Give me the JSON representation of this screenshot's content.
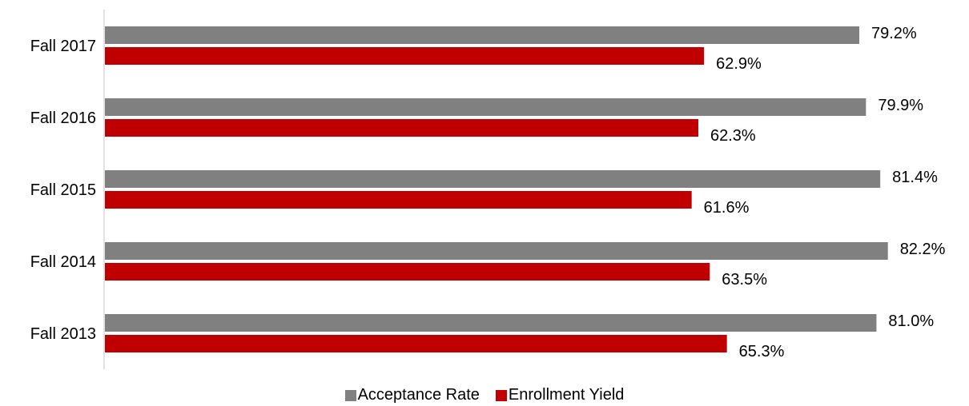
{
  "chart_data": {
    "type": "bar",
    "orientation": "horizontal",
    "categories": [
      "Fall 2017",
      "Fall 2016",
      "Fall 2015",
      "Fall 2014",
      "Fall 2013"
    ],
    "series": [
      {
        "name": "Acceptance Rate",
        "color": "#808080",
        "values": [
          79.2,
          79.9,
          81.4,
          82.2,
          81.0
        ],
        "labels": [
          "79.2%",
          "79.9%",
          "81.4%",
          "82.2%",
          "81.0%"
        ]
      },
      {
        "name": "Enrollment Yield",
        "color": "#c00000",
        "values": [
          62.9,
          62.3,
          61.6,
          63.5,
          65.3
        ],
        "labels": [
          "62.9%",
          "62.3%",
          "61.6%",
          "63.5%",
          "65.3%"
        ]
      }
    ],
    "xlim": [
      0,
      85
    ],
    "grid": false,
    "legend_position": "bottom"
  }
}
